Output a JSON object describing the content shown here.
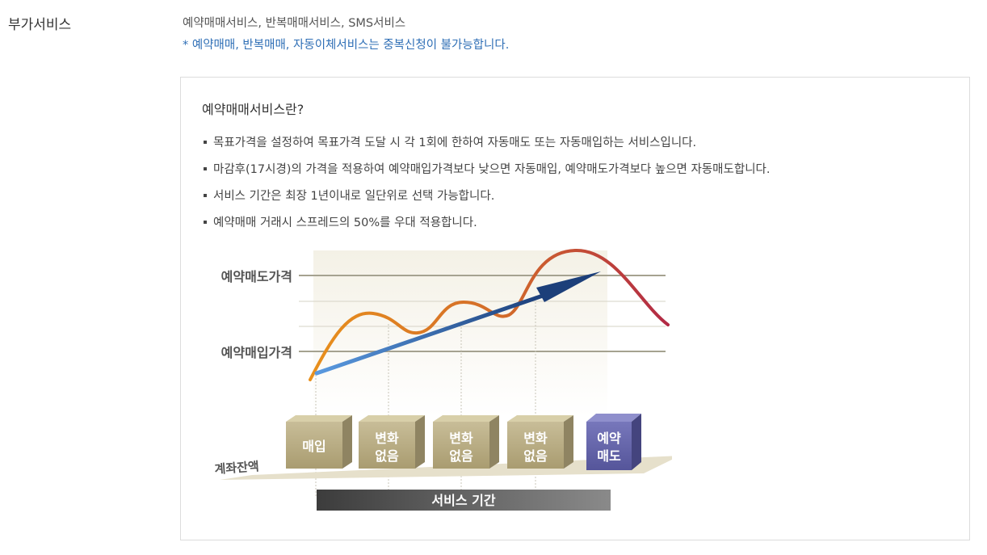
{
  "row": {
    "label": "부가서비스",
    "value": "예약매매서비스, 반복매매서비스, SMS서비스",
    "note": "* 예약매매, 반복매매, 자동이체서비스는 중복신청이 불가능합니다."
  },
  "info": {
    "title": "예약매매서비스란?",
    "bullets": [
      "목표가격을 설정하여 목표가격 도달 시 각 1회에 한하여 자동매도 또는 자동매입하는 서비스입니다.",
      "마감후(17시경)의 가격을 적용하여 예약매입가격보다 낮으면 자동매입, 예약매도가격보다 높으면 자동매도합니다.",
      "서비스 기간은 최장 1년이내로 일단위로 선택 가능합니다.",
      "예약매매 거래시 스프레드의 50%를 우대 적용합니다."
    ]
  },
  "diagram": {
    "sell_price_label": "예약매도가격",
    "buy_price_label": "예약매입가격",
    "balance_label": "계좌잔액",
    "period_label": "서비스 기간",
    "blocks": [
      {
        "line1": "매입",
        "line2": ""
      },
      {
        "line1": "변화",
        "line2": "없음"
      },
      {
        "line1": "변화",
        "line2": "없음"
      },
      {
        "line1": "변화",
        "line2": "없음"
      },
      {
        "line1": "예약",
        "line2": "매도"
      }
    ],
    "colors": {
      "curve_start": "#e8901c",
      "curve_end": "#b22a45",
      "trend_start": "#5a9ae0",
      "trend_end": "#1c3f7a",
      "block_face": "#b5a882",
      "block_last": "#6666aa",
      "period_bar": "#555555"
    }
  }
}
